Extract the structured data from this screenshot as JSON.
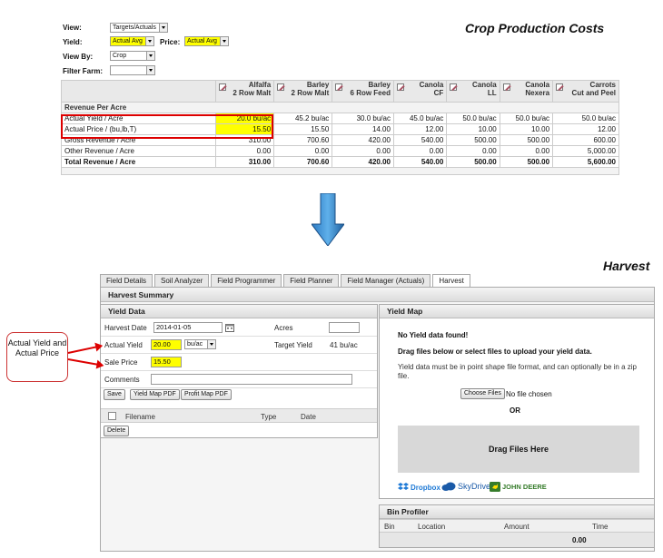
{
  "top": {
    "title": "Crop Production Costs",
    "view_label": "View:",
    "view_value": "Targets/Actuals",
    "yield_label": "Yield:",
    "yield_value": "Actual Avg",
    "price_label": "Price:",
    "price_value": "Actual Avg",
    "viewby_label": "View By:",
    "viewby_value": "Crop",
    "filterfarm_label": "Filter Farm:",
    "filterfarm_value": "",
    "columns": [
      {
        "l1": "Alfalfa",
        "l2": "2 Row Malt"
      },
      {
        "l1": "Barley",
        "l2": "2 Row Malt"
      },
      {
        "l1": "Barley",
        "l2": "6 Row Feed"
      },
      {
        "l1": "Canola",
        "l2": "CF"
      },
      {
        "l1": "Canola",
        "l2": "LL"
      },
      {
        "l1": "Canola",
        "l2": "Nexera"
      },
      {
        "l1": "Carrots",
        "l2": "Cut and Peel"
      }
    ],
    "section": "Revenue Per Acre",
    "rows": [
      {
        "label": "Actual Yield / Acre",
        "values": [
          "20.0 bu/ac",
          "45.2 bu/ac",
          "30.0 bu/ac",
          "45.0 bu/ac",
          "50.0 bu/ac",
          "50.0 bu/ac",
          "50.0 bu/ac"
        ]
      },
      {
        "label": "Actual Price / (bu,lb,T)",
        "values": [
          "15.50",
          "15.50",
          "14.00",
          "12.00",
          "10.00",
          "10.00",
          "12.00"
        ]
      },
      {
        "label": "Gross Revenue / Acre",
        "values": [
          "310.00",
          "700.60",
          "420.00",
          "540.00",
          "500.00",
          "500.00",
          "600.00"
        ]
      },
      {
        "label": "Other Revenue / Acre",
        "values": [
          "0.00",
          "0.00",
          "0.00",
          "0.00",
          "0.00",
          "0.00",
          "5,000.00"
        ]
      }
    ],
    "total": {
      "label": "Total Revenue / Acre",
      "values": [
        "310.00",
        "700.60",
        "420.00",
        "540.00",
        "500.00",
        "500.00",
        "5,600.00"
      ]
    }
  },
  "harvest": {
    "title": "Harvest",
    "tabs": [
      "Field Details",
      "Soil Analyzer",
      "Field Programmer",
      "Field Planner",
      "Field Manager (Actuals)",
      "Harvest"
    ],
    "summary": "Harvest Summary",
    "yield_data": {
      "header": "Yield Data",
      "harvest_date_label": "Harvest Date",
      "harvest_date": "2014-01-05",
      "acres_label": "Acres",
      "acres": "",
      "actual_yield_label": "Actual Yield",
      "actual_yield": "20.00",
      "unit": "bu/ac",
      "target_yield_label": "Target Yield",
      "target_yield": "41 bu/ac",
      "sale_price_label": "Sale Price",
      "sale_price": "15.50",
      "comments_label": "Comments",
      "comments": "",
      "save": "Save",
      "yield_map_pdf": "Yield Map PDF",
      "profit_map_pdf": "Profit Map PDF",
      "col_filename": "Filename",
      "col_type": "Type",
      "col_date": "Date",
      "delete": "Delete"
    },
    "yield_map": {
      "header": "Yield Map",
      "no_data": "No Yield data found!",
      "instruction": "Drag files below or select files to upload your yield data.",
      "format_note": "Yield data must be in point shape file format, and can optionally be in a zip file.",
      "choose_files": "Choose Files",
      "no_file": "No file chosen",
      "or": "OR",
      "drag_here": "Drag Files Here",
      "providers": [
        "Dropbox",
        "SkyDrive",
        "JOHN DEERE"
      ]
    },
    "bin_profiler": {
      "header": "Bin Profiler",
      "cols": [
        "Bin",
        "Location",
        "Amount",
        "Time"
      ],
      "amount": "0.00"
    }
  },
  "callout": "Actual Yield and Actual Price"
}
